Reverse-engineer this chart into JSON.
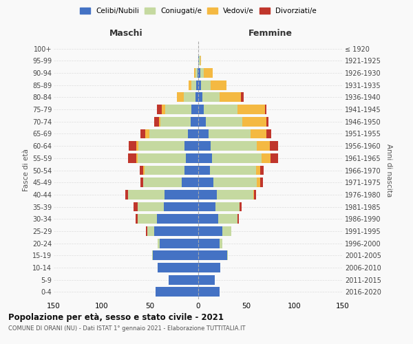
{
  "age_groups": [
    "0-4",
    "5-9",
    "10-14",
    "15-19",
    "20-24",
    "25-29",
    "30-34",
    "35-39",
    "40-44",
    "45-49",
    "50-54",
    "55-59",
    "60-64",
    "65-69",
    "70-74",
    "75-79",
    "80-84",
    "85-89",
    "90-94",
    "95-99",
    "100+"
  ],
  "birth_years": [
    "2016-2020",
    "2011-2015",
    "2006-2010",
    "2001-2005",
    "1996-2000",
    "1991-1995",
    "1986-1990",
    "1981-1985",
    "1976-1980",
    "1971-1975",
    "1966-1970",
    "1961-1965",
    "1956-1960",
    "1951-1955",
    "1946-1950",
    "1941-1945",
    "1936-1940",
    "1931-1935",
    "1926-1930",
    "1921-1925",
    "≤ 1920"
  ],
  "maschi": {
    "celibe": [
      44,
      31,
      42,
      47,
      40,
      46,
      43,
      36,
      35,
      17,
      14,
      13,
      14,
      11,
      8,
      7,
      3,
      2,
      1,
      0,
      0
    ],
    "coniugato": [
      0,
      0,
      0,
      1,
      2,
      7,
      20,
      27,
      38,
      40,
      42,
      50,
      48,
      40,
      31,
      27,
      12,
      5,
      2,
      0,
      0
    ],
    "vedovo": [
      0,
      0,
      0,
      0,
      0,
      0,
      0,
      0,
      0,
      0,
      1,
      1,
      2,
      4,
      2,
      4,
      7,
      3,
      1,
      0,
      0
    ],
    "divorziato": [
      0,
      0,
      0,
      0,
      0,
      1,
      2,
      4,
      3,
      3,
      4,
      9,
      8,
      5,
      5,
      5,
      0,
      0,
      0,
      0,
      0
    ]
  },
  "femmine": {
    "nubile": [
      22,
      17,
      23,
      30,
      22,
      25,
      21,
      18,
      19,
      16,
      12,
      14,
      13,
      11,
      8,
      6,
      4,
      3,
      2,
      1,
      0
    ],
    "coniugata": [
      0,
      0,
      0,
      1,
      3,
      9,
      20,
      25,
      38,
      45,
      48,
      52,
      48,
      43,
      38,
      35,
      18,
      10,
      4,
      1,
      0
    ],
    "vedova": [
      0,
      0,
      0,
      0,
      0,
      0,
      0,
      0,
      1,
      3,
      4,
      9,
      13,
      17,
      25,
      28,
      22,
      16,
      9,
      1,
      0
    ],
    "divorziata": [
      0,
      0,
      0,
      0,
      0,
      0,
      1,
      2,
      2,
      3,
      4,
      8,
      9,
      5,
      2,
      2,
      3,
      0,
      0,
      0,
      0
    ]
  },
  "colors": {
    "celibe": "#4472C4",
    "coniugato": "#c5d9a0",
    "vedovo": "#F4B942",
    "divorziato": "#C0362C"
  },
  "xlim": 150,
  "title": "Popolazione per età, sesso e stato civile - 2021",
  "subtitle": "COMUNE DI ORANI (NU) - Dati ISTAT 1° gennaio 2021 - Elaborazione TUTTITALIA.IT",
  "ylabel_left": "Fasce di età",
  "ylabel_right": "Anni di nascita",
  "xlabel_maschi": "Maschi",
  "xlabel_femmine": "Femmine",
  "bg_color": "#f9f9f9"
}
